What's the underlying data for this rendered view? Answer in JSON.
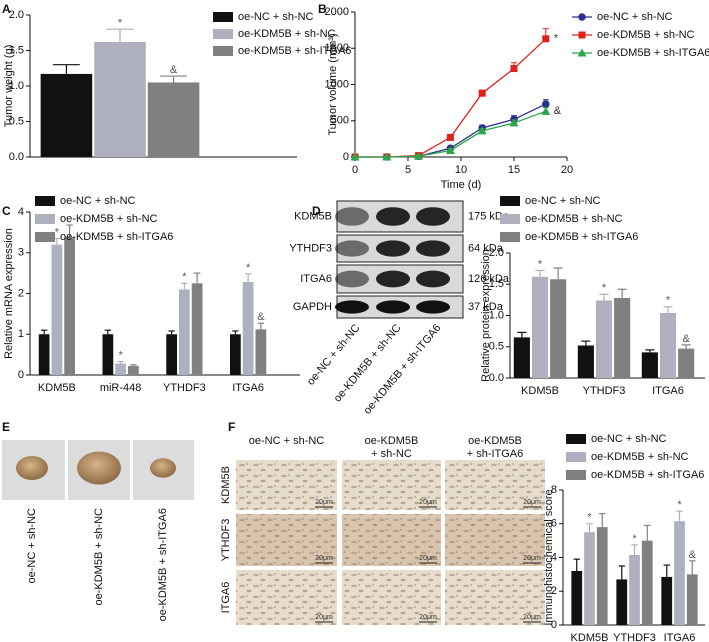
{
  "panels": [
    "A",
    "B",
    "C",
    "D",
    "E",
    "F"
  ],
  "blot": {
    "proteins": [
      "KDM5B",
      "YTHDF3",
      "ITGA6",
      "GAPDH"
    ],
    "sizes": [
      "175 kDa",
      "64 kDa",
      "126 kDa",
      "37 kDa"
    ],
    "lanes": [
      "oe-NC + sh-NC",
      "oe-KDM5B + sh-NC",
      "oe-KDM5B + sh-ITGA6"
    ]
  },
  "tumor_images": {
    "labels": [
      "oe-NC + sh-NC",
      "oe-KDM5B + sh-NC",
      "oe-KDM5B + sh-ITGA6"
    ]
  },
  "ihc": {
    "columns": [
      [
        "oe-NC + sh-NC"
      ],
      [
        "oe-KDM5B",
        "+ sh-NC"
      ],
      [
        "oe-KDM5B",
        "+ sh-ITGA6"
      ]
    ],
    "rows": [
      "KDM5B",
      "YTHDF3",
      "ITGA6"
    ],
    "scale": "20μm"
  },
  "chart_data": [
    {
      "type": "bar",
      "ylabel": "Tumor weight (g)",
      "categories": [
        null
      ],
      "ylim": [
        0,
        2
      ],
      "yticks": [
        {
          "value": 0,
          "label": "0.0"
        },
        0.5,
        {
          "value": 1,
          "label": "1.0"
        },
        1.5,
        {
          "value": 2,
          "label": "2.0"
        }
      ],
      "series": [
        {
          "name": "oe-NC + sh-NC",
          "color": "#111111",
          "values": [
            1.17
          ],
          "errors": [
            0.13
          ]
        },
        {
          "name": "oe-KDM5B + sh-NC",
          "color": "#aeb0bd",
          "values": [
            1.62
          ],
          "errors": [
            0.18
          ],
          "annotations": [
            "*"
          ]
        },
        {
          "name": "oe-KDM5B + sh-ITGA6",
          "color": "#808080",
          "values": [
            1.05
          ],
          "errors": [
            0.09
          ],
          "annotations": [
            "&"
          ]
        }
      ]
    },
    {
      "type": "line",
      "xlabel": "Time (d)",
      "ylabel": "Tumor volume (mm³)",
      "x": [
        0,
        3,
        6,
        9,
        12,
        15,
        18
      ],
      "xlim": [
        0,
        20
      ],
      "xticks": [
        0,
        5,
        10,
        15,
        20
      ],
      "ylim": [
        0,
        2000
      ],
      "yticks": [
        0,
        500,
        1000,
        1500,
        2000
      ],
      "series": [
        {
          "name": "oe-NC + sh-NC",
          "color": "#2b2f8f",
          "marker": "circle",
          "values": [
            0,
            0,
            10,
            120,
            400,
            520,
            730
          ],
          "errors": [
            5,
            5,
            10,
            30,
            40,
            50,
            60
          ]
        },
        {
          "name": "oe-KDM5B + sh-NC",
          "color": "#e0201b",
          "marker": "square",
          "values": [
            0,
            0,
            20,
            270,
            880,
            1220,
            1630
          ],
          "errors": [
            5,
            5,
            10,
            30,
            40,
            80,
            140
          ],
          "annotations": [
            null,
            null,
            null,
            null,
            null,
            null,
            "*"
          ]
        },
        {
          "name": "oe-KDM5B + sh-ITGA6",
          "color": "#2aa84a",
          "marker": "triangle",
          "values": [
            0,
            0,
            10,
            90,
            360,
            470,
            630
          ],
          "errors": [
            5,
            5,
            10,
            25,
            30,
            40,
            50
          ],
          "annotations": [
            null,
            null,
            null,
            null,
            null,
            null,
            "&"
          ]
        }
      ]
    },
    {
      "type": "bar",
      "ylabel": "Relative mRNA expression",
      "categories": [
        "KDM5B",
        "miR-448",
        "YTHDF3",
        "ITGA6"
      ],
      "ylim": [
        0,
        4
      ],
      "yticks": [
        0,
        1,
        2,
        3,
        4
      ],
      "series": [
        {
          "name": "oe-NC + sh-NC",
          "color": "#111111",
          "values": [
            1.0,
            1.0,
            1.0,
            1.0
          ],
          "errors": [
            0.1,
            0.1,
            0.08,
            0.08
          ]
        },
        {
          "name": "oe-KDM5B + sh-NC",
          "color": "#aeb0bd",
          "values": [
            3.2,
            0.28,
            2.1,
            2.28
          ],
          "errors": [
            0.15,
            0.05,
            0.15,
            0.2
          ],
          "annotations": [
            "*",
            "*",
            "*",
            "*"
          ]
        },
        {
          "name": "oe-KDM5B + sh-ITGA6",
          "color": "#808080",
          "values": [
            3.38,
            0.22,
            2.25,
            1.12
          ],
          "errors": [
            0.3,
            0.03,
            0.25,
            0.15
          ],
          "annotations": [
            null,
            null,
            null,
            "&"
          ]
        }
      ]
    },
    {
      "type": "bar",
      "ylabel": "Relative protein expression",
      "categories": [
        "KDM5B",
        "YTHDF3",
        "ITGA6"
      ],
      "ylim": [
        0,
        2
      ],
      "yticks": [
        {
          "value": 0,
          "label": "0.0"
        },
        0.5,
        {
          "value": 1,
          "label": "1.0"
        },
        1.5,
        {
          "value": 2,
          "label": "2.0"
        }
      ],
      "series": [
        {
          "name": "oe-NC + sh-NC",
          "color": "#111111",
          "values": [
            0.65,
            0.52,
            0.41
          ],
          "errors": [
            0.08,
            0.07,
            0.04
          ]
        },
        {
          "name": "oe-KDM5B + sh-NC",
          "color": "#aeb0bd",
          "values": [
            1.62,
            1.24,
            1.04
          ],
          "errors": [
            0.1,
            0.1,
            0.1
          ],
          "annotations": [
            "*",
            "*",
            "*"
          ]
        },
        {
          "name": "oe-KDM5B + sh-ITGA6",
          "color": "#808080",
          "values": [
            1.58,
            1.28,
            0.47
          ],
          "errors": [
            0.18,
            0.14,
            0.06
          ],
          "annotations": [
            null,
            null,
            "&"
          ]
        }
      ]
    },
    {
      "type": "bar",
      "ylabel": "Immunohistochemical score",
      "categories": [
        "KDM5B",
        "YTHDF3",
        "ITGA6"
      ],
      "ylim": [
        0,
        8
      ],
      "yticks": [
        0,
        2,
        4,
        6,
        8
      ],
      "series": [
        {
          "name": "oe-NC + sh-NC",
          "color": "#111111",
          "values": [
            3.2,
            2.7,
            2.85
          ],
          "errors": [
            0.7,
            0.8,
            0.7
          ]
        },
        {
          "name": "oe-KDM5B + sh-NC",
          "color": "#aeb0bd",
          "values": [
            5.5,
            4.15,
            6.15
          ],
          "errors": [
            0.5,
            0.6,
            0.6
          ],
          "annotations": [
            "*",
            "*",
            "*"
          ]
        },
        {
          "name": "oe-KDM5B + sh-ITGA6",
          "color": "#808080",
          "values": [
            5.8,
            5.0,
            3.0
          ],
          "errors": [
            0.8,
            0.9,
            0.8
          ],
          "annotations": [
            null,
            null,
            "&"
          ]
        }
      ]
    }
  ]
}
